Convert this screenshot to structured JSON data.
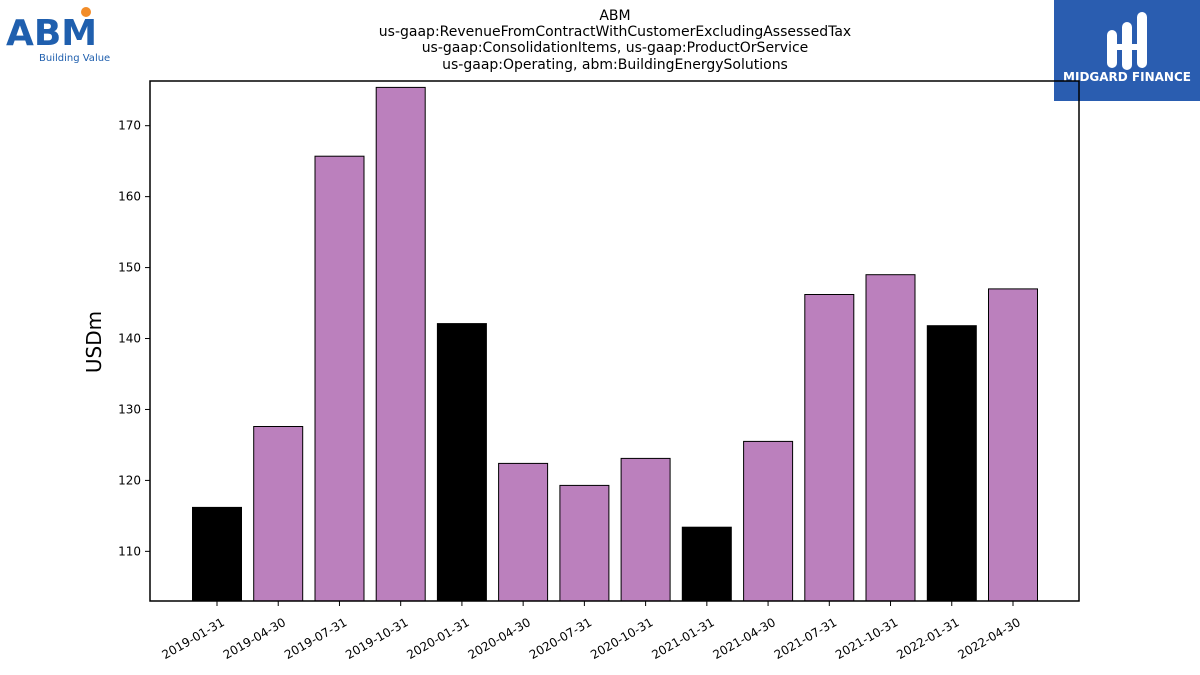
{
  "logos": {
    "left": {
      "name": "ABM",
      "tagline": "Building Value",
      "color": "#1f5fae",
      "dot_color": "#f28c28"
    },
    "right": {
      "name": "MIDGARD FINANCE",
      "background": "#2a5db0"
    }
  },
  "colors": {
    "bar_default": "#bb80bd",
    "bar_highlight": "#000000",
    "bar_edge": "#000000"
  },
  "chart_data": {
    "type": "bar",
    "title": [
      "ABM",
      "us-gaap:RevenueFromContractWithCustomerExcludingAssessedTax",
      "us-gaap:ConsolidationItems, us-gaap:ProductOrService",
      "us-gaap:Operating, abm:BuildingEnergySolutions"
    ],
    "xlabel": "",
    "ylabel": "USDm",
    "categories": [
      "2019-01-31",
      "2019-04-30",
      "2019-07-31",
      "2019-10-31",
      "2020-01-31",
      "2020-04-30",
      "2020-07-31",
      "2020-10-31",
      "2021-01-31",
      "2021-04-30",
      "2021-07-31",
      "2021-10-31",
      "2022-01-31",
      "2022-04-30"
    ],
    "values": [
      116.2,
      127.6,
      165.7,
      175.4,
      142.1,
      122.4,
      119.3,
      123.1,
      113.4,
      125.5,
      146.2,
      149.0,
      141.8,
      147.0
    ],
    "highlight": [
      true,
      false,
      false,
      false,
      true,
      false,
      false,
      false,
      true,
      false,
      false,
      false,
      true,
      false
    ],
    "ylim": [
      103,
      176.3
    ],
    "yticks": [
      110,
      120,
      130,
      140,
      150,
      160,
      170
    ],
    "grid": false,
    "legend": "none"
  }
}
